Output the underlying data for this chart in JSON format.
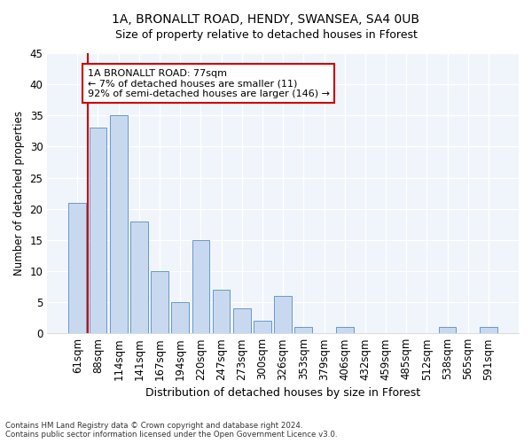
{
  "title1": "1A, BRONALLT ROAD, HENDY, SWANSEA, SA4 0UB",
  "title2": "Size of property relative to detached houses in Fforest",
  "xlabel": "Distribution of detached houses by size in Fforest",
  "ylabel": "Number of detached properties",
  "bar_labels": [
    "61sqm",
    "88sqm",
    "114sqm",
    "141sqm",
    "167sqm",
    "194sqm",
    "220sqm",
    "247sqm",
    "273sqm",
    "300sqm",
    "326sqm",
    "353sqm",
    "379sqm",
    "406sqm",
    "432sqm",
    "459sqm",
    "485sqm",
    "512sqm",
    "538sqm",
    "565sqm",
    "591sqm"
  ],
  "bar_values": [
    21,
    33,
    35,
    18,
    10,
    5,
    15,
    7,
    4,
    2,
    6,
    1,
    0,
    1,
    0,
    0,
    0,
    0,
    1,
    0,
    1
  ],
  "bar_color": "#c8d9ef",
  "bar_edge_color": "#6699cc",
  "highlight_color": "#cc0000",
  "annotation_title": "1A BRONALLT ROAD: 77sqm",
  "annotation_line1": "← 7% of detached houses are smaller (11)",
  "annotation_line2": "92% of semi-detached houses are larger (146) →",
  "annotation_box_facecolor": "#ffffff",
  "annotation_box_edgecolor": "#cc0000",
  "vline_x_index": 0,
  "ylim": [
    0,
    45
  ],
  "yticks": [
    0,
    5,
    10,
    15,
    20,
    25,
    30,
    35,
    40,
    45
  ],
  "footer1": "Contains HM Land Registry data © Crown copyright and database right 2024.",
  "footer2": "Contains public sector information licensed under the Open Government Licence v3.0.",
  "bg_color": "#ffffff",
  "plot_bg_color": "#f0f4fb",
  "grid_color": "#ffffff",
  "title1_fontsize": 10,
  "title2_fontsize": 9
}
